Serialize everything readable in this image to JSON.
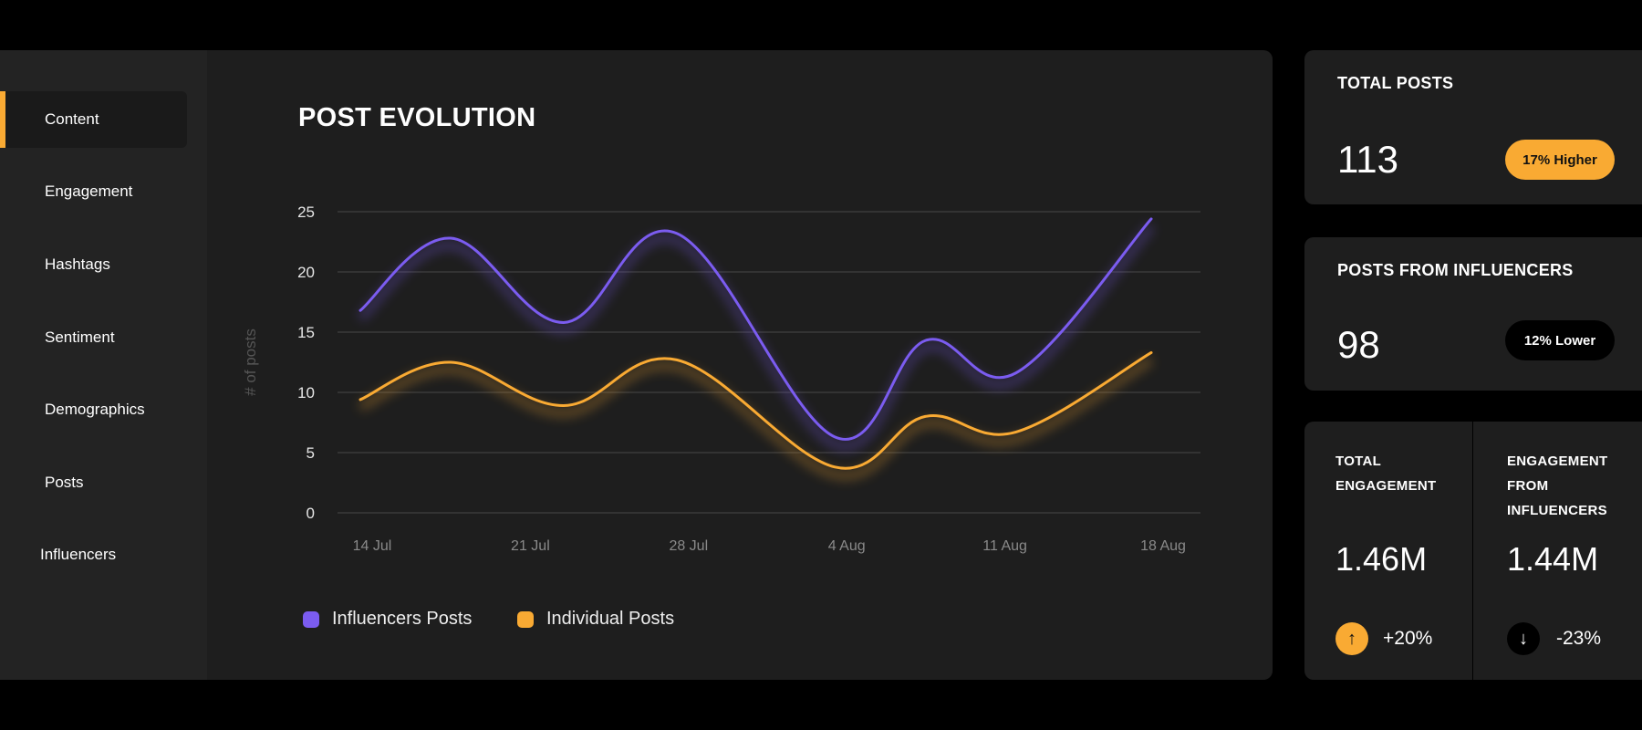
{
  "sidebar": {
    "items": [
      {
        "label": "Content",
        "active": true
      },
      {
        "label": "Engagement"
      },
      {
        "label": "Hashtags"
      },
      {
        "label": "Sentiment"
      },
      {
        "label": "Demographics"
      },
      {
        "label": "Posts"
      },
      {
        "label": "Influencers"
      }
    ]
  },
  "colors": {
    "accent": "#f9aa33",
    "influencers": "#7b5cf0",
    "individual": "#f9aa33",
    "panel": "#1e1e1e"
  },
  "chart_data": {
    "type": "line",
    "title": "POST EVOLUTION",
    "ylabel": "# of posts",
    "xlabel": "",
    "ylim": [
      0,
      25
    ],
    "yticks": [
      0,
      5,
      10,
      15,
      20,
      25
    ],
    "xtick_labels": [
      "14 Jul",
      "21 Jul",
      "28 Jul",
      "4 Aug",
      "11 Aug",
      "18 Aug"
    ],
    "grid": true,
    "legend_position": "bottom-left",
    "x": [
      "14 Jul",
      "18 Jul",
      "23 Jul",
      "28 Jul",
      "4 Aug",
      "8 Aug",
      "12 Aug",
      "18 Aug"
    ],
    "series": [
      {
        "name": "Influencers Posts",
        "color": "#7b5cf0",
        "values": [
          16.8,
          22.8,
          15.8,
          23.2,
          6.3,
          14.3,
          11.6,
          24.4
        ]
      },
      {
        "name": "Individual Posts",
        "color": "#f9aa33",
        "values": [
          9.4,
          12.5,
          8.9,
          12.7,
          3.8,
          8.0,
          6.7,
          13.3
        ]
      }
    ]
  },
  "cards": {
    "total_posts": {
      "label": "TOTAL POSTS",
      "value": "113",
      "badge": "17% Higher"
    },
    "influencer_posts": {
      "label": "POSTS FROM INFLUENCERS",
      "value": "98",
      "badge": "12% Lower"
    },
    "total_engagement": {
      "label": "TOTAL ENGAGEMENT",
      "value": "1.46M",
      "change": "+20%",
      "icon": "arrow-up-icon"
    },
    "influencer_engagement": {
      "label": "ENGAGEMENT FROM INFLUENCERS",
      "value": "1.44M",
      "change": "-23%",
      "icon": "arrow-down-icon"
    }
  }
}
